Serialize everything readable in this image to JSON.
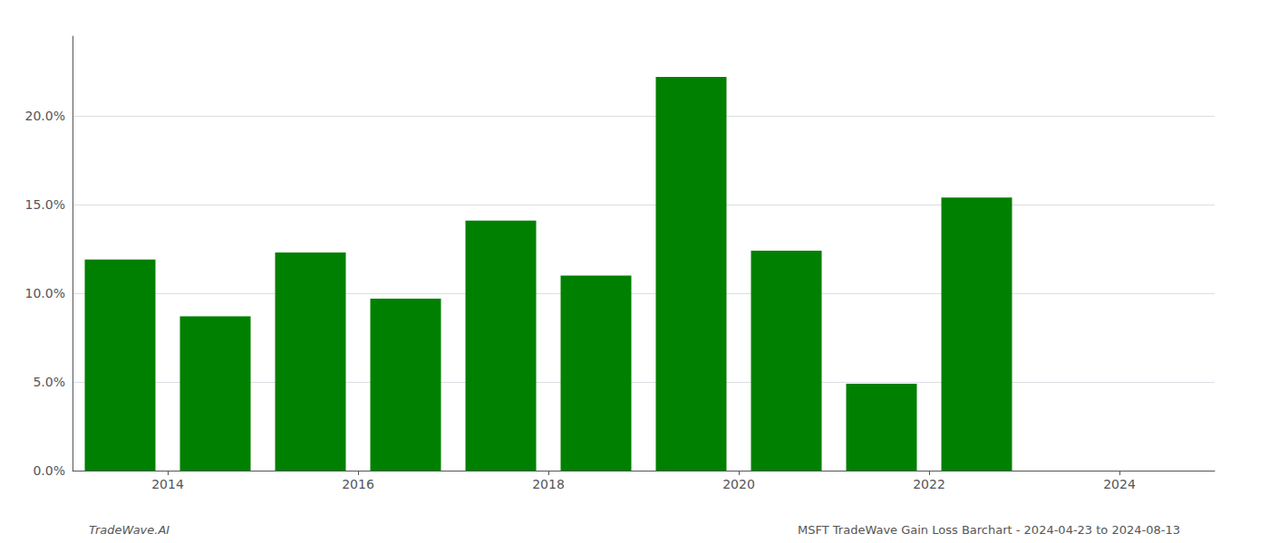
{
  "chart_data": {
    "type": "bar",
    "x": [
      2013.5,
      2014.5,
      2015.5,
      2016.5,
      2017.5,
      2018.5,
      2019.5,
      2020.5,
      2021.5,
      2022.5,
      2023.5
    ],
    "values": [
      0.119,
      0.087,
      0.123,
      0.097,
      0.141,
      0.11,
      0.222,
      0.124,
      0.049,
      0.154,
      0.0
    ],
    "color": "#008000",
    "xlim": [
      2013.0,
      2025.0
    ],
    "xticks": [
      2014,
      2016,
      2018,
      2020,
      2022,
      2024
    ],
    "ylim": [
      0,
      0.245
    ],
    "yticks": [
      {
        "value": 0.0,
        "label": "0.0%"
      },
      {
        "value": 0.05,
        "label": "5.0%"
      },
      {
        "value": 0.1,
        "label": "10.0%"
      },
      {
        "value": 0.15,
        "label": "15.0%"
      },
      {
        "value": 0.2,
        "label": "20.0%"
      }
    ],
    "grid": true,
    "annotations": [
      "TradeWave.AI",
      "MSFT TradeWave Gain Loss Barchart - 2024-04-23 to 2024-08-13"
    ]
  }
}
